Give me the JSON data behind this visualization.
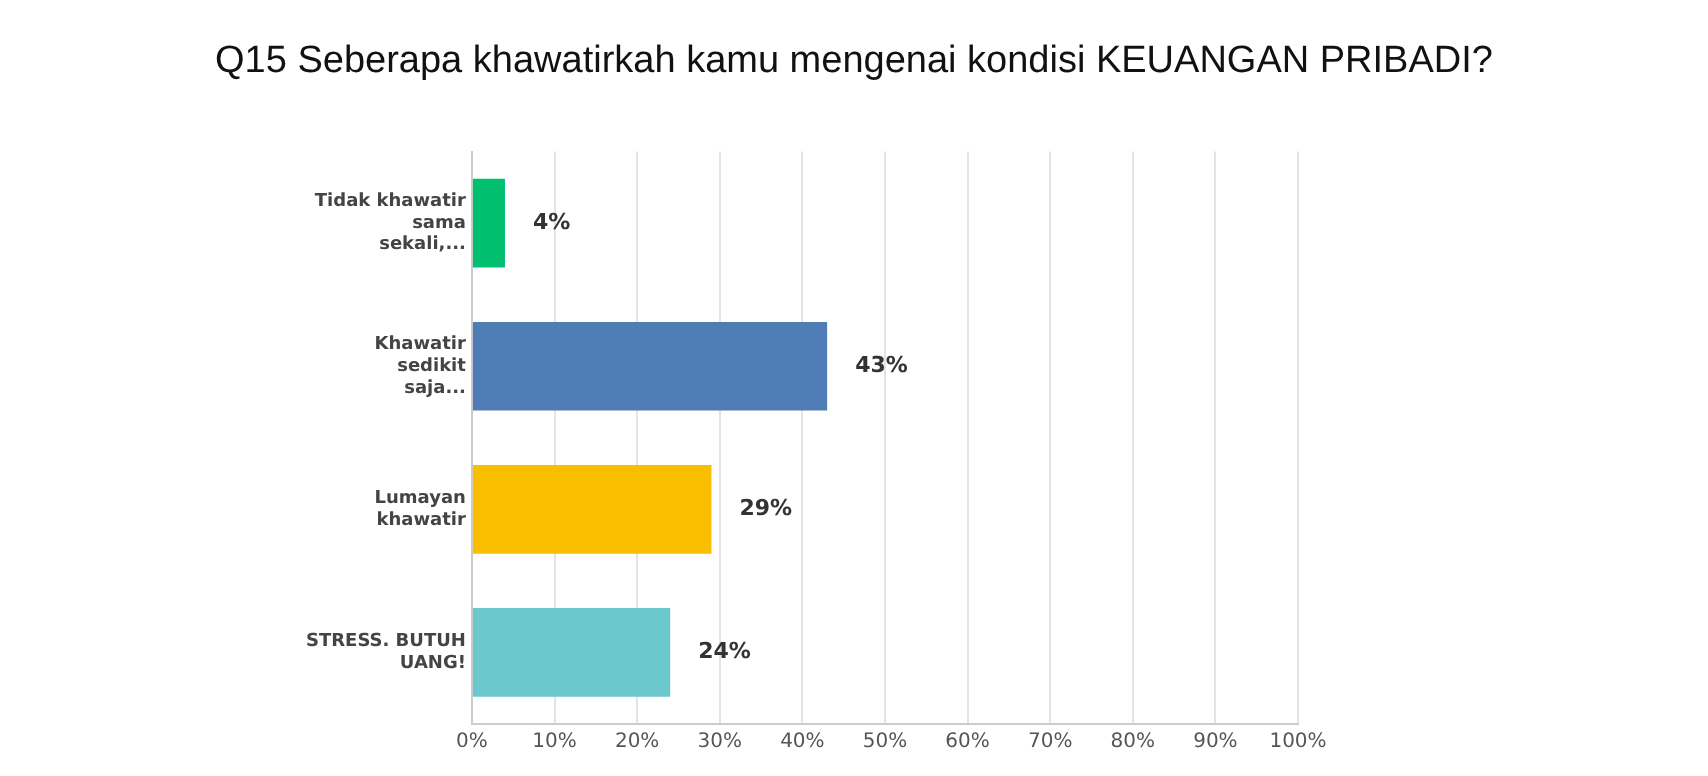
{
  "chart_data": {
    "type": "bar",
    "orientation": "horizontal",
    "title": "Q15 Seberapa khawatirkah kamu mengenai kondisi KEUANGAN PRIBADI?",
    "categories": [
      "Tidak khawatir sama sekali,...",
      "Khawatir sedikit saja...",
      "Lumayan khawatir",
      "STRESS. BUTUH UANG!"
    ],
    "values": [
      4,
      43,
      29,
      24
    ],
    "colors": [
      "#00bf6f",
      "#507cb6",
      "#f9be00",
      "#6bc8cd"
    ],
    "value_labels": [
      "4%",
      "43%",
      "29%",
      "24%"
    ],
    "xlim": [
      0,
      100
    ],
    "xticks": [
      {
        "value": 0,
        "label": "0%"
      },
      {
        "value": 10,
        "label": "10%"
      },
      {
        "value": 20,
        "label": "20%"
      },
      {
        "value": 30,
        "label": "30%"
      },
      {
        "value": 40,
        "label": "40%"
      },
      {
        "value": 50,
        "label": "50%"
      },
      {
        "value": 60,
        "label": "60%"
      },
      {
        "value": 70,
        "label": "70%"
      },
      {
        "value": 80,
        "label": "80%"
      },
      {
        "value": 90,
        "label": "90%"
      },
      {
        "value": 100,
        "label": "100%"
      }
    ],
    "grid": "x"
  }
}
